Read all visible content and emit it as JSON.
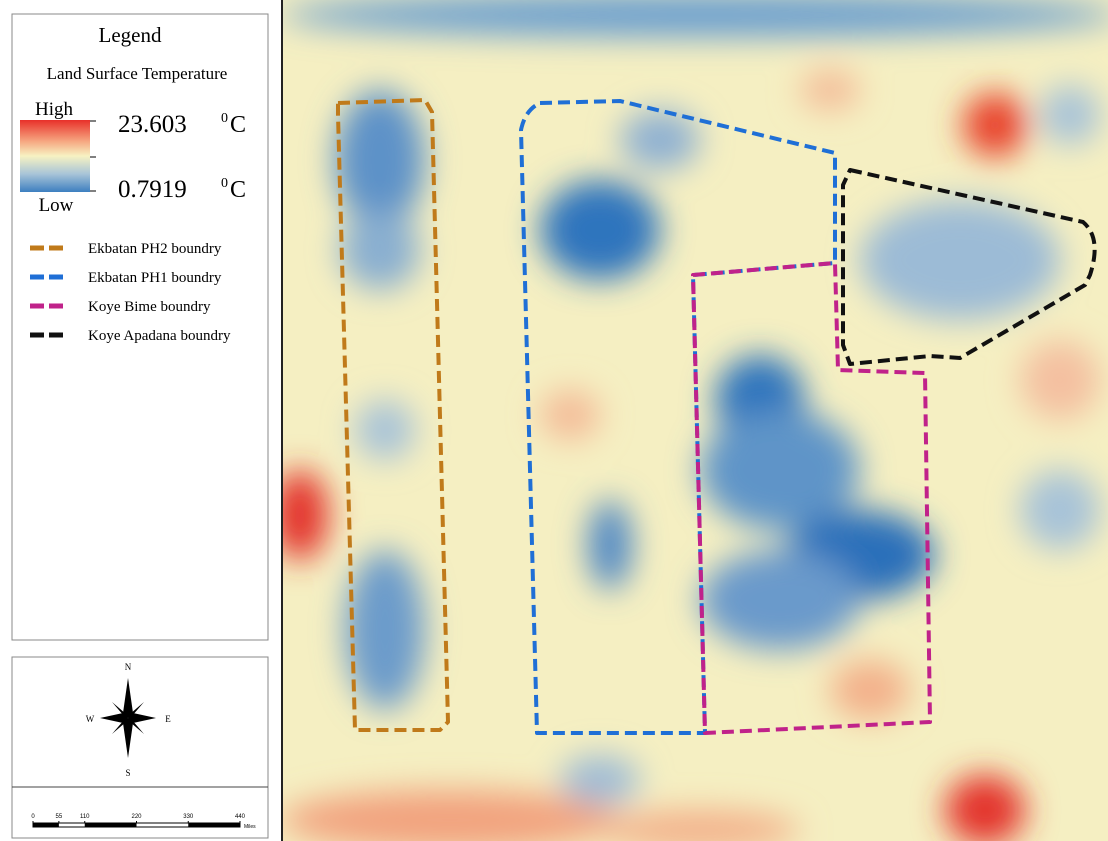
{
  "legend": {
    "title": "Legend",
    "subtitle": "Land Surface Temperature",
    "high_label": "High",
    "low_label": "Low",
    "high_value": 23.603,
    "low_value": 0.7919,
    "unit_sup": "0",
    "unit": "C",
    "entries": [
      {
        "label": "Ekbatan PH2 boundry",
        "color": "#c07a1a"
      },
      {
        "label": "Ekbatan PH1 boundry",
        "color": "#1f6fd6"
      },
      {
        "label": "Koye Bime boundry",
        "color": "#c0228a"
      },
      {
        "label": "Koye Apadana boundry",
        "color": "#111111"
      }
    ]
  },
  "compass": {
    "n": "N",
    "e": "E",
    "s": "S",
    "w": "W"
  },
  "scale_bar": {
    "ticks": [
      0,
      55,
      110,
      220,
      330,
      440
    ],
    "unit": "Miles"
  }
}
